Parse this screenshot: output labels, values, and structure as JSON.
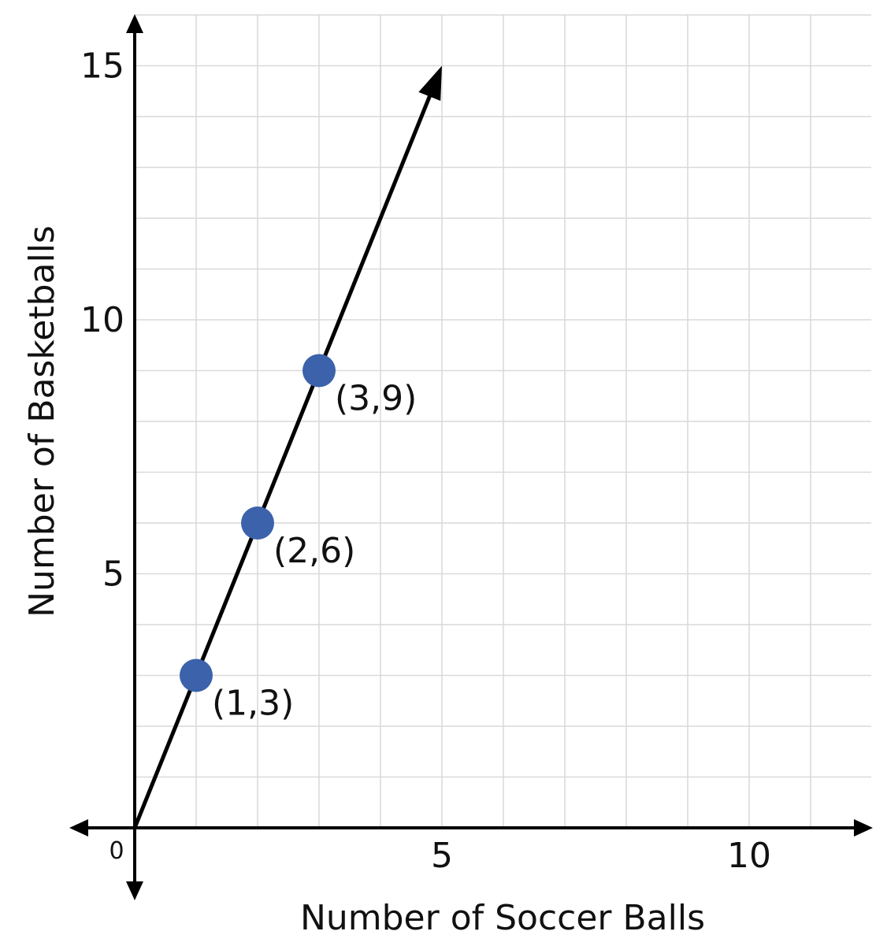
{
  "chart_data": {
    "type": "scatter",
    "title": "",
    "xlabel": "Number of Soccer Balls",
    "ylabel": "Number of Basketballs",
    "xlim": [
      -1,
      12
    ],
    "ylim": [
      -1.5,
      16
    ],
    "x_ticks": [
      5,
      10
    ],
    "y_ticks": [
      5,
      10,
      15
    ],
    "origin_label": "0",
    "grid": true,
    "gridline_color": "#d9d9d9",
    "axis_color": "#000000",
    "point_color": "#3b62aa",
    "series": [
      {
        "points": [
          {
            "x": 1,
            "y": 3,
            "label": "(1,3)"
          },
          {
            "x": 2,
            "y": 6,
            "label": "(2,6)"
          },
          {
            "x": 3,
            "y": 9,
            "label": "(3,9)"
          }
        ]
      }
    ],
    "line": {
      "slope": 3,
      "from_x": 0,
      "to_x": 5,
      "arrow_end": true
    }
  }
}
